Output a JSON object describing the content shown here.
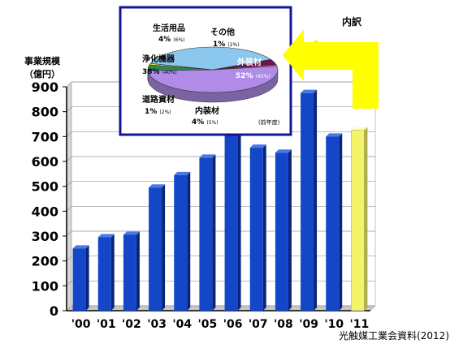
{
  "chart_data": [
    {
      "type": "bar",
      "ylabel": "事業規模",
      "ylabel_unit": "（億円）",
      "categories": [
        "'00",
        "'01",
        "'02",
        "'03",
        "'04",
        "'05",
        "'06",
        "'07",
        "'08",
        "'09",
        "'10",
        "'11"
      ],
      "values": [
        250,
        295,
        305,
        495,
        545,
        615,
        770,
        655,
        635,
        875,
        700,
        725
      ],
      "highlight_index": 11,
      "ylim": [
        0,
        900
      ],
      "yticks": [
        0,
        100,
        200,
        300,
        400,
        500,
        600,
        700,
        800,
        900
      ],
      "grid": true,
      "colors": {
        "bar": "#1446c8",
        "bar_side": "#0a2478",
        "highlight": "#f4f46a",
        "highlight_side": "#b0b040"
      },
      "source": "光触媒工業会資料(2012)"
    },
    {
      "type": "pie",
      "title": "内訳",
      "note": "(前年度)",
      "slices": [
        {
          "label": "外装材",
          "value": 52,
          "value_text": "52%",
          "prev_text": "(45%)",
          "color": "#b08ce8"
        },
        {
          "label": "内装材",
          "value": 4,
          "value_text": "4%",
          "prev_text": "(5%)",
          "color": "#2a8a5a"
        },
        {
          "label": "道路資材",
          "value": 1,
          "value_text": "1%",
          "prev_text": "(2%)",
          "color": "#e8e040"
        },
        {
          "label": "浄化機器",
          "value": 38,
          "value_text": "38%",
          "prev_text": "(40%)",
          "color": "#8cc8ee"
        },
        {
          "label": "生活用品",
          "value": 4,
          "value_text": "4%",
          "prev_text": "(6%)",
          "color": "#6a1450"
        },
        {
          "label": "その他",
          "value": 1,
          "value_text": "1%",
          "prev_text": "(2%)",
          "color": "#e86a9a"
        }
      ]
    }
  ]
}
